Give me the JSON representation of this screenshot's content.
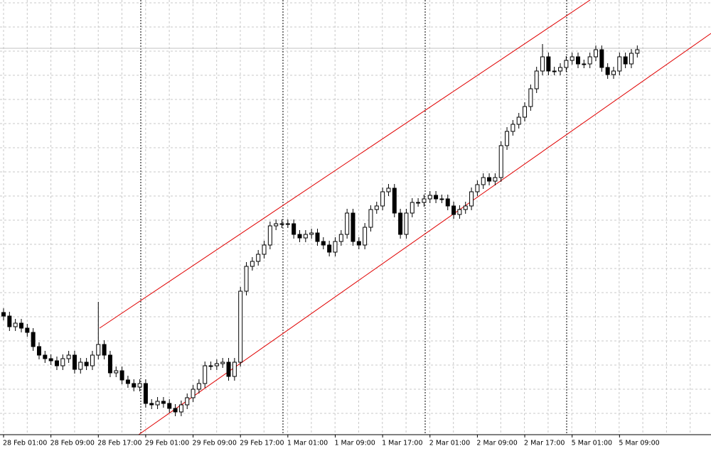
{
  "chart_data": {
    "type": "candlestick",
    "categories": [
      "28 Feb 01:00",
      null,
      null,
      null,
      null,
      null,
      null,
      null,
      "28 Feb 09:00",
      null,
      null,
      null,
      null,
      null,
      null,
      null,
      "28 Feb 17:00",
      null,
      null,
      null,
      null,
      null,
      null,
      null,
      "29 Feb 01:00",
      null,
      null,
      null,
      null,
      null,
      null,
      null,
      "29 Feb 09:00",
      null,
      null,
      null,
      null,
      null,
      null,
      null,
      "29 Feb 17:00",
      null,
      null,
      null,
      null,
      null,
      null,
      null,
      "1 Mar 01:00",
      null,
      null,
      null,
      null,
      null,
      null,
      null,
      "1 Mar 09:00",
      null,
      null,
      null,
      null,
      null,
      null,
      null,
      "1 Mar 17:00",
      null,
      null,
      null,
      null,
      null,
      null,
      null,
      "2 Mar 01:00",
      null,
      null,
      null,
      null,
      null,
      null,
      null,
      "2 Mar 09:00",
      null,
      null,
      null,
      null,
      null,
      null,
      null,
      "2 Mar 17:00",
      null,
      null,
      null,
      null,
      null,
      null,
      null,
      "5 Mar 01:00",
      null,
      null,
      null,
      null,
      null,
      null,
      null,
      "5 Mar 09:00",
      null,
      null,
      null
    ],
    "open": [
      170,
      165,
      150,
      155,
      148,
      142,
      122,
      110,
      105,
      102,
      95,
      105,
      110,
      90,
      100,
      95,
      110,
      125,
      110,
      85,
      88,
      75,
      70,
      65,
      70,
      42,
      40,
      45,
      42,
      35,
      30,
      40,
      50,
      62,
      70,
      95,
      95,
      98,
      100,
      80,
      100,
      200,
      235,
      242,
      252,
      265,
      292,
      295,
      295,
      295,
      280,
      275,
      280,
      282,
      270,
      265,
      255,
      270,
      280,
      310,
      270,
      265,
      290,
      315,
      320,
      340,
      345,
      310,
      280,
      310,
      325,
      325,
      330,
      335,
      330,
      330,
      320,
      308,
      315,
      320,
      340,
      350,
      360,
      355,
      360,
      405,
      425,
      435,
      445,
      460,
      485,
      510,
      530,
      510,
      510,
      515,
      525,
      530,
      520,
      520,
      530,
      540,
      515,
      505,
      510,
      530,
      520,
      535
    ],
    "high": [
      176,
      171,
      161,
      161,
      154,
      148,
      128,
      116,
      111,
      108,
      111,
      116,
      116,
      106,
      106,
      116,
      185,
      131,
      116,
      94,
      94,
      81,
      76,
      76,
      76,
      48,
      51,
      51,
      48,
      41,
      46,
      56,
      68,
      76,
      101,
      101,
      104,
      106,
      106,
      106,
      206,
      241,
      248,
      258,
      271,
      298,
      301,
      301,
      301,
      301,
      286,
      286,
      288,
      288,
      276,
      271,
      276,
      286,
      316,
      316,
      276,
      296,
      321,
      326,
      346,
      351,
      351,
      316,
      316,
      331,
      331,
      336,
      341,
      341,
      336,
      336,
      326,
      321,
      326,
      346,
      356,
      366,
      366,
      366,
      411,
      431,
      441,
      451,
      466,
      491,
      516,
      548,
      536,
      516,
      521,
      531,
      536,
      536,
      526,
      536,
      546,
      546,
      521,
      516,
      536,
      536,
      541,
      546
    ],
    "low": [
      159,
      144,
      144,
      142,
      136,
      116,
      104,
      99,
      96,
      89,
      89,
      99,
      84,
      84,
      89,
      89,
      104,
      104,
      79,
      79,
      69,
      64,
      59,
      59,
      36,
      34,
      34,
      36,
      29,
      24,
      24,
      34,
      44,
      56,
      64,
      89,
      89,
      92,
      74,
      74,
      94,
      194,
      229,
      236,
      246,
      259,
      286,
      289,
      289,
      274,
      269,
      269,
      274,
      264,
      259,
      249,
      249,
      264,
      274,
      264,
      259,
      259,
      284,
      309,
      314,
      334,
      304,
      274,
      274,
      304,
      319,
      319,
      324,
      324,
      324,
      314,
      302,
      302,
      309,
      314,
      334,
      344,
      349,
      349,
      354,
      399,
      419,
      429,
      439,
      454,
      479,
      504,
      504,
      504,
      504,
      509,
      519,
      514,
      514,
      514,
      524,
      509,
      499,
      499,
      504,
      514,
      514,
      529
    ],
    "close": [
      165,
      150,
      155,
      148,
      142,
      122,
      110,
      105,
      102,
      95,
      105,
      110,
      90,
      100,
      95,
      110,
      125,
      110,
      85,
      88,
      75,
      70,
      65,
      70,
      42,
      40,
      45,
      42,
      35,
      30,
      40,
      50,
      62,
      70,
      95,
      95,
      98,
      100,
      80,
      100,
      200,
      235,
      242,
      252,
      265,
      292,
      295,
      295,
      295,
      280,
      275,
      280,
      282,
      270,
      265,
      255,
      270,
      280,
      310,
      270,
      265,
      290,
      315,
      320,
      340,
      345,
      310,
      280,
      310,
      325,
      325,
      330,
      335,
      330,
      330,
      320,
      308,
      315,
      320,
      340,
      350,
      360,
      355,
      360,
      405,
      425,
      435,
      445,
      460,
      485,
      510,
      530,
      510,
      510,
      515,
      525,
      530,
      520,
      520,
      530,
      540,
      515,
      505,
      510,
      530,
      520,
      535,
      540
    ],
    "ylim": [
      0,
      610
    ],
    "up_color": "#ffffff",
    "down_color": "#000000",
    "grid": true
  }
}
